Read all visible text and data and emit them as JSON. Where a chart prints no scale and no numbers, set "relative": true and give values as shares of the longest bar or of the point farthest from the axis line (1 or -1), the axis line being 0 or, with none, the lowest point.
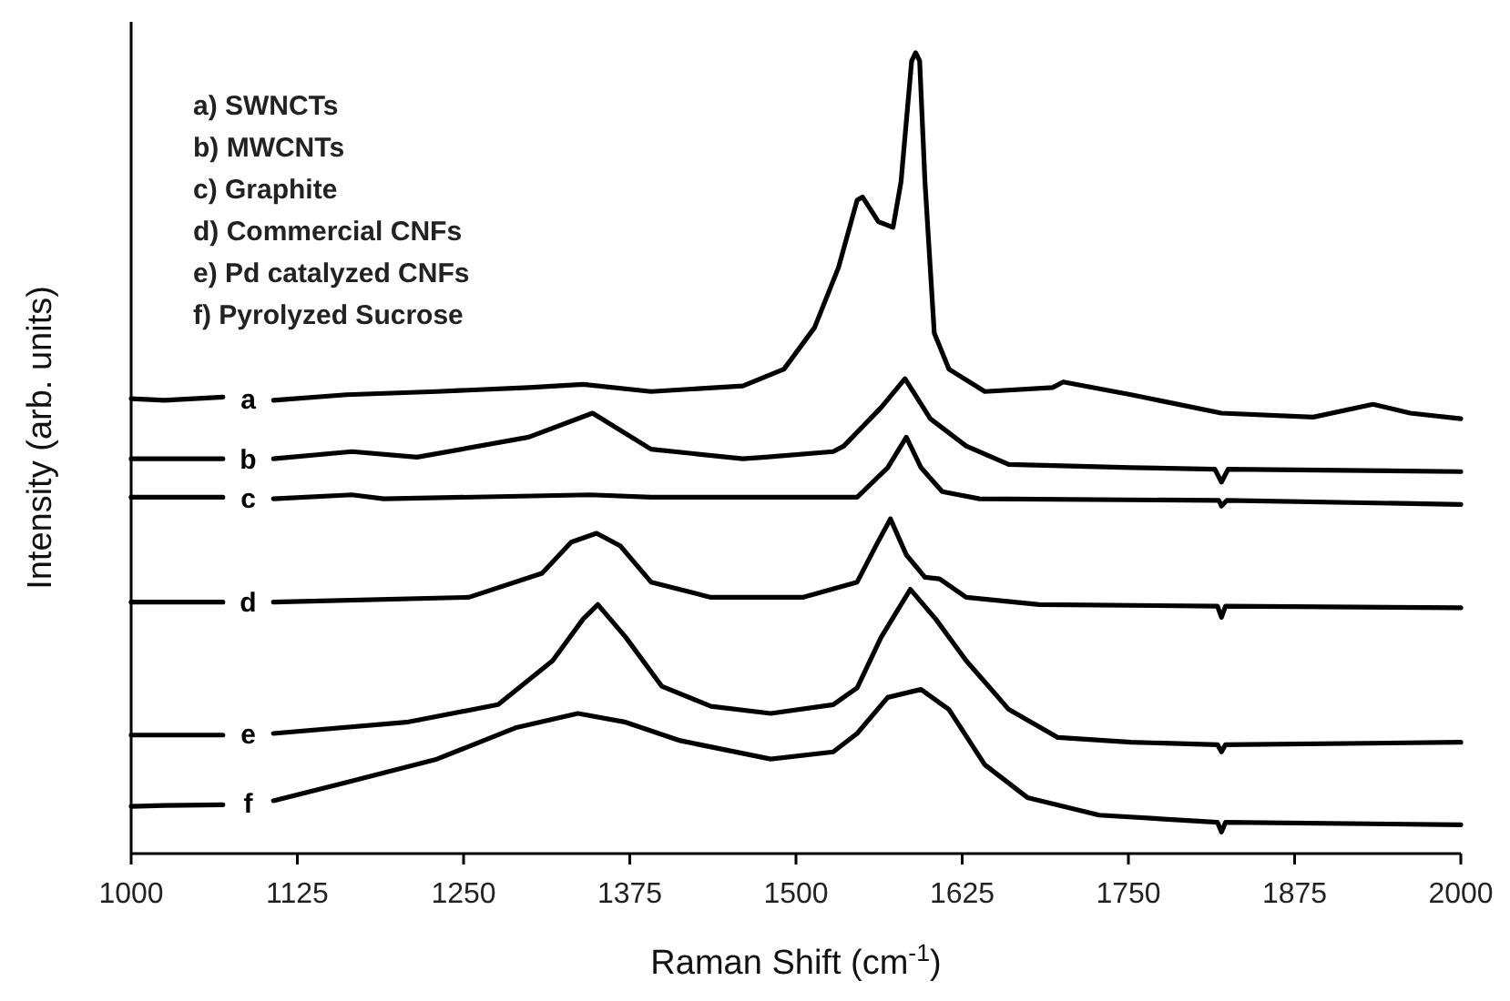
{
  "chart_data": {
    "type": "line",
    "relative": true,
    "xlabel": "Raman Shift (cm$^{-1}$)",
    "ylabel": "Intensity (arb. units)",
    "xlim": [
      1000,
      2000
    ],
    "xticks": [
      1000,
      1125,
      1250,
      1375,
      1500,
      1625,
      1750,
      1875,
      2000
    ],
    "grid": false,
    "line_style": "solid",
    "annotations": [
      "a) SWNCTs",
      "b) MWCNTs",
      "c) Graphite",
      "d) Commercial CNFs",
      "e) Pd catalyzed CNFs",
      "f) Pyrolyzed Sucrose"
    ],
    "series": [
      {
        "name": "a",
        "color": "#000000",
        "x": [
          1000,
          1025,
          1069,
          1088,
          1107,
          1162,
          1230,
          1299,
          1340,
          1391,
          1460,
          1491,
          1514,
          1532,
          1546,
          1550,
          1562,
          1573,
          1579,
          1587,
          1590,
          1593,
          1597,
          1604,
          1615,
          1642,
          1693,
          1701,
          1752,
          1820,
          1889,
          1934,
          1962,
          2000
        ],
        "values": [
          0.568,
          0.566,
          0.57,
          null,
          0.566,
          0.573,
          0.577,
          0.582,
          0.586,
          0.577,
          0.584,
          0.605,
          0.657,
          0.732,
          0.816,
          0.82,
          0.789,
          0.782,
          0.839,
          0.99,
          1,
          0.99,
          0.839,
          0.65,
          0.605,
          0.577,
          0.582,
          0.589,
          0.573,
          0.55,
          0.545,
          0.561,
          0.55,
          0.543
        ]
      },
      {
        "name": "b",
        "color": "#000000",
        "x": [
          1000,
          1025,
          1069,
          1088,
          1107,
          1166,
          1215,
          1299,
          1347,
          1391,
          1460,
          1477,
          1528,
          1536,
          1564,
          1582,
          1601,
          1628,
          1660,
          1752,
          1815,
          1820,
          1825,
          2000
        ],
        "values": [
          0.493,
          0.493,
          0.493,
          null,
          0.493,
          0.502,
          0.495,
          0.52,
          0.55,
          0.505,
          0.493,
          0.495,
          0.502,
          0.509,
          0.557,
          0.593,
          0.543,
          0.509,
          0.486,
          0.482,
          0.48,
          0.464,
          0.48,
          0.477
        ]
      },
      {
        "name": "c",
        "color": "#000000",
        "x": [
          1000,
          1025,
          1069,
          1088,
          1107,
          1166,
          1190,
          1345,
          1391,
          1546,
          1569,
          1583,
          1594,
          1610,
          1638,
          1818,
          1820,
          1824,
          2000
        ],
        "values": [
          0.445,
          0.445,
          0.445,
          null,
          0.443,
          0.448,
          0.443,
          0.448,
          0.445,
          0.445,
          0.482,
          0.52,
          0.482,
          0.452,
          0.443,
          0.441,
          0.434,
          0.441,
          0.436
        ]
      },
      {
        "name": "d",
        "color": "#000000",
        "x": [
          1000,
          1025,
          1069,
          1088,
          1107,
          1254,
          1309,
          1331,
          1350,
          1368,
          1391,
          1436,
          1505,
          1546,
          1560,
          1571,
          1583,
          1597,
          1608,
          1628,
          1683,
          1817,
          1820,
          1823,
          2000
        ],
        "values": [
          0.314,
          0.314,
          0.314,
          null,
          0.314,
          0.32,
          0.35,
          0.389,
          0.4,
          0.384,
          0.339,
          0.32,
          0.32,
          0.339,
          0.384,
          0.418,
          0.373,
          0.345,
          0.343,
          0.32,
          0.311,
          0.309,
          0.295,
          0.309,
          0.307
        ]
      },
      {
        "name": "e",
        "color": "#000000",
        "x": [
          1000,
          1025,
          1069,
          1088,
          1107,
          1207,
          1276,
          1317,
          1340,
          1351,
          1372,
          1399,
          1436,
          1481,
          1528,
          1546,
          1564,
          1586,
          1605,
          1628,
          1660,
          1697,
          1752,
          1817,
          1820,
          1823,
          2000
        ],
        "values": [
          0.148,
          0.148,
          0.148,
          null,
          0.15,
          0.164,
          0.186,
          0.241,
          0.293,
          0.311,
          0.27,
          0.209,
          0.184,
          0.175,
          0.186,
          0.207,
          0.27,
          0.33,
          0.293,
          0.241,
          0.18,
          0.145,
          0.139,
          0.136,
          0.127,
          0.136,
          0.139
        ]
      },
      {
        "name": "f",
        "color": "#000000",
        "x": [
          1000,
          1025,
          1069,
          1088,
          1107,
          1162,
          1230,
          1289,
          1336,
          1372,
          1413,
          1481,
          1528,
          1546,
          1569,
          1594,
          1615,
          1642,
          1674,
          1728,
          1817,
          1820,
          1823,
          2000
        ],
        "values": [
          0.059,
          0.06,
          0.061,
          null,
          0.066,
          0.089,
          0.118,
          0.157,
          0.175,
          0.164,
          0.141,
          0.118,
          0.127,
          0.15,
          0.195,
          0.205,
          0.18,
          0.111,
          0.07,
          0.048,
          0.039,
          0.027,
          0.039,
          0.036
        ]
      }
    ]
  }
}
